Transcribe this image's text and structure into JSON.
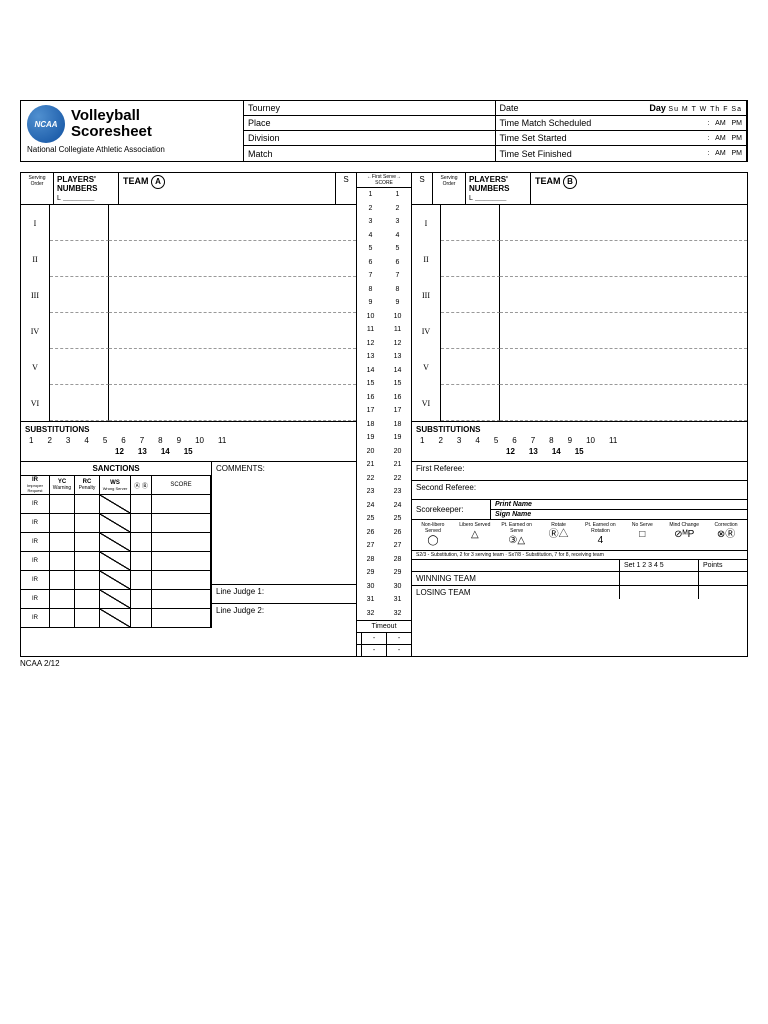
{
  "org": "NCAA",
  "title1": "Volleyball",
  "title2": "Scoresheet",
  "subtitle": "National Collegiate Athletic Association",
  "header": {
    "tourney": "Tourney",
    "place": "Place",
    "division": "Division",
    "match": "Match",
    "date": "Date",
    "day": "Day",
    "days": "Su  M  T  W  Th  F  Sa",
    "tms": "Time Match Scheduled",
    "tss": "Time Set Started",
    "tsf": "Time Set Finished",
    "am": "AM",
    "pm": "PM",
    "colon": ":"
  },
  "labels": {
    "so": "Serving Order",
    "pn": "PLAYERS' NUMBERS",
    "l": "L",
    "team": "TEAM",
    "s": "S",
    "fs": "←First Serve→",
    "score": "SCORE",
    "subs": "SUBSTITUTIONS",
    "sanctions": "SANCTIONS",
    "comments": "COMMENTS:",
    "timeout": "Timeout",
    "lj1": "Line Judge 1:",
    "lj2": "Line Judge 2:",
    "ref1": "First Referee:",
    "ref2": "Second Referee:",
    "sk": "Scorekeeper:",
    "pn2": "Print Name",
    "sn": "Sign Name",
    "wt": "WINNING TEAM",
    "lt": "LOSING TEAM",
    "set": "Set 1 2 3 4 5",
    "pts": "Points",
    "dash": "-"
  },
  "romans": [
    "I",
    "II",
    "III",
    "IV",
    "V",
    "VI"
  ],
  "subnums1": [
    "1",
    "2",
    "3",
    "4",
    "5",
    "6",
    "7",
    "8",
    "9",
    "10",
    "11"
  ],
  "subnums2": [
    "12",
    "13",
    "14",
    "15"
  ],
  "scores": [
    "1",
    "2",
    "3",
    "4",
    "5",
    "6",
    "7",
    "8",
    "9",
    "10",
    "11",
    "12",
    "13",
    "14",
    "15",
    "16",
    "17",
    "18",
    "19",
    "20",
    "21",
    "22",
    "23",
    "24",
    "25",
    "26",
    "27",
    "28",
    "29",
    "30",
    "31",
    "32"
  ],
  "sanc": {
    "ir": "IR",
    "irs": "Improper Request",
    "yc": "YC",
    "ycs": "Warning",
    "rc": "RC",
    "rcs": "Penalty",
    "ws": "WS",
    "wss": "Wrong Server",
    "ab": "Ⓐ Ⓑ",
    "sc": "SCORE"
  },
  "legend": [
    "Non-libero Served",
    "Libero Served",
    "Pt. Earned on Serve",
    "Rotate",
    "Pt. Earned on Rotation",
    "No Serve",
    "Mind Change",
    "Correction"
  ],
  "legsym": [
    "◯",
    "△",
    "③△",
    "Ⓡ△",
    "4",
    "□",
    "⊘ᴹP",
    "⊗Ⓡ"
  ],
  "legnote": "S2/3 - Substitution, 2 for 3 serving team · Sx7/8 - Substitution, 7 for 8, receiving team",
  "footer": "NCAA  2/12"
}
